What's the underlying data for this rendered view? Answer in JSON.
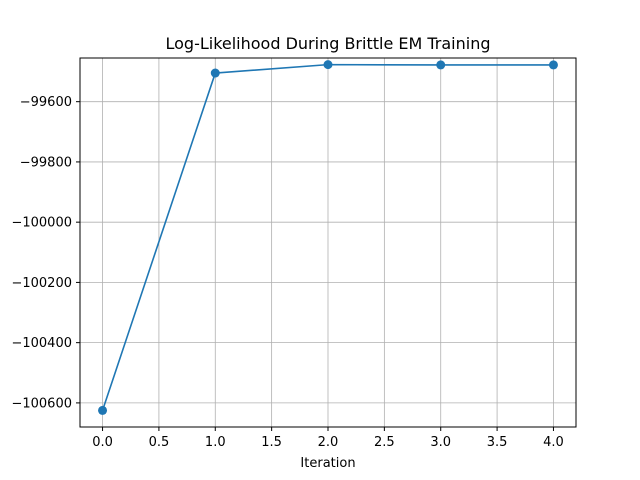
{
  "chart_data": {
    "type": "line",
    "title": "Log-Likelihood During Brittle EM Training",
    "xlabel": "Iteration",
    "ylabel": "",
    "x": [
      0,
      1,
      2,
      3,
      4
    ],
    "series": [
      {
        "values": [
          -100625,
          -99505,
          -99477,
          -99478,
          -99478
        ],
        "color": "#1f77b4",
        "marker": "circle"
      }
    ],
    "xlim": [
      -0.2,
      4.2
    ],
    "ylim": [
      -100680,
      -99455
    ],
    "xticks": [
      0.0,
      0.5,
      1.0,
      1.5,
      2.0,
      2.5,
      3.0,
      3.5,
      4.0
    ],
    "xtick_labels": [
      "0.0",
      "0.5",
      "1.0",
      "1.5",
      "2.0",
      "2.5",
      "3.0",
      "3.5",
      "4.0"
    ],
    "yticks": [
      -100600,
      -100400,
      -100200,
      -100000,
      -99800,
      -99600
    ],
    "ytick_labels": [
      "−100600",
      "−100400",
      "−100200",
      "−100000",
      "−99800",
      "−99600"
    ],
    "grid": true,
    "legend": "none"
  }
}
